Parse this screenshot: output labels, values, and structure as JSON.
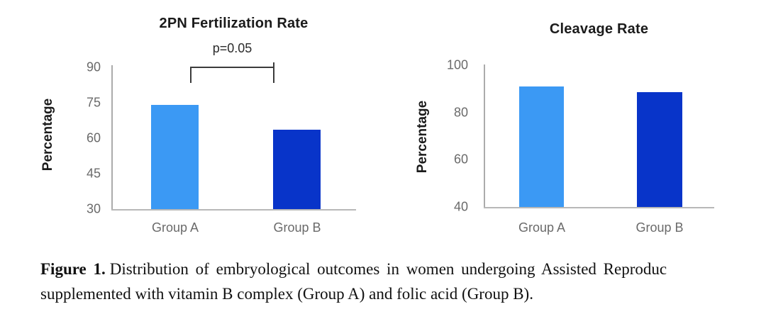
{
  "colors": {
    "group_a_bar": "#3B99F4",
    "group_b_bar": "#0834C9",
    "tick_text": "#6a6a6a",
    "axis_line": "#ababab"
  },
  "chart_data": [
    {
      "type": "bar",
      "title": "2PN Fertilization Rate",
      "ylabel": "Percentage",
      "xlabel": "",
      "categories": [
        "Group A",
        "Group B"
      ],
      "values": [
        74,
        63.5
      ],
      "ylim": [
        30,
        90
      ],
      "yticks": [
        90,
        75,
        60,
        45,
        30
      ],
      "grid": false,
      "legend": null,
      "annotation": "p=0.05",
      "annotation_note": "significance bracket between Group A and Group B",
      "bar_colors": [
        "#3B99F4",
        "#0834C9"
      ]
    },
    {
      "type": "bar",
      "title": "Cleavage Rate",
      "ylabel": "Percentage",
      "xlabel": "",
      "categories": [
        "Group A",
        "Group B"
      ],
      "values": [
        91,
        88.5
      ],
      "ylim": [
        40,
        100
      ],
      "yticks": [
        100,
        80,
        60,
        40
      ],
      "grid": false,
      "legend": null,
      "annotation": null,
      "bar_colors": [
        "#3B99F4",
        "#0834C9"
      ]
    }
  ],
  "caption": {
    "label": "Figure 1.",
    "line1": "Distribution of embryological outcomes in women undergoing Assisted Reproduc",
    "line2": "supplemented with vitamin B complex (Group A) and folic acid (Group B)."
  }
}
